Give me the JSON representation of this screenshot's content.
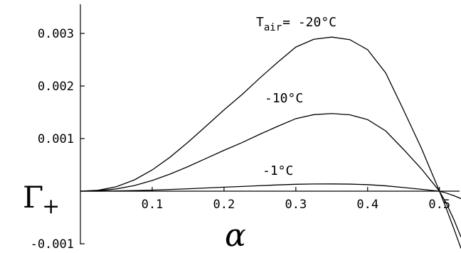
{
  "chart_data": {
    "type": "line",
    "xlabel": "α",
    "ylabel": "Γ+",
    "xlim": [
      0,
      0.53
    ],
    "ylim": [
      -0.001,
      0.0035
    ],
    "x_ticks": [
      {
        "value": 0.1,
        "label": "0.1"
      },
      {
        "value": 0.2,
        "label": "0.2"
      },
      {
        "value": 0.3,
        "label": "0.3"
      },
      {
        "value": 0.4,
        "label": "0.4"
      },
      {
        "value": 0.5,
        "label": "0.5"
      }
    ],
    "y_ticks": [
      {
        "value": -0.001,
        "label": "-0.001"
      },
      {
        "value": 0.001,
        "label": "0.001"
      },
      {
        "value": 0.002,
        "label": "0.002"
      },
      {
        "value": 0.003,
        "label": "0.003"
      }
    ],
    "series": [
      {
        "label_text": "T",
        "label_sub": "air",
        "label_rest": "= -20°C",
        "x": [
          0,
          0.025,
          0.05,
          0.075,
          0.1,
          0.125,
          0.15,
          0.175,
          0.2,
          0.225,
          0.25,
          0.275,
          0.3,
          0.325,
          0.35,
          0.375,
          0.4,
          0.425,
          0.45,
          0.475,
          0.5,
          0.51,
          0.52,
          0.53
        ],
        "y": [
          0,
          1.8e-05,
          8.5e-05,
          0.000213,
          0.000404,
          0.000648,
          0.000932,
          0.001237,
          0.001545,
          0.001836,
          0.002153,
          0.002455,
          0.00274,
          0.002888,
          0.00293,
          0.002882,
          0.00269,
          0.002252,
          0.001542,
          0.000813,
          0.0,
          -0.000347,
          -0.000712,
          -0.001088
        ]
      },
      {
        "label_text": "-10°C",
        "x": [
          0,
          0.025,
          0.05,
          0.075,
          0.1,
          0.125,
          0.15,
          0.175,
          0.2,
          0.225,
          0.25,
          0.275,
          0.3,
          0.325,
          0.35,
          0.375,
          0.4,
          0.425,
          0.45,
          0.475,
          0.5,
          0.51,
          0.52,
          0.53
        ],
        "y": [
          0,
          9e-06,
          4.3e-05,
          0.000107,
          0.000203,
          0.000326,
          0.000468,
          0.000622,
          0.000777,
          0.000923,
          0.001083,
          0.001235,
          0.001379,
          0.001455,
          0.001476,
          0.001453,
          0.001361,
          0.001147,
          0.000794,
          0.000422,
          0.0,
          -0.000246,
          -0.000537,
          -0.000874
        ]
      },
      {
        "label_text": "-1°C",
        "x": [
          0,
          0.025,
          0.05,
          0.075,
          0.1,
          0.125,
          0.15,
          0.175,
          0.2,
          0.225,
          0.25,
          0.275,
          0.3,
          0.325,
          0.35,
          0.375,
          0.4,
          0.425,
          0.45,
          0.475,
          0.5,
          0.51,
          0.52,
          0.53
        ],
        "y": [
          0,
          1e-06,
          4e-06,
          1.1e-05,
          2e-05,
          3.2e-05,
          4.6e-05,
          6.1e-05,
          7.6e-05,
          9e-05,
          0.000105,
          0.000119,
          0.000131,
          0.000137,
          0.000138,
          0.000134,
          0.000124,
          0.000102,
          6.9e-05,
          3.6e-05,
          0.0,
          -3.8e-05,
          -8.5e-05,
          -0.000142
        ]
      }
    ]
  }
}
